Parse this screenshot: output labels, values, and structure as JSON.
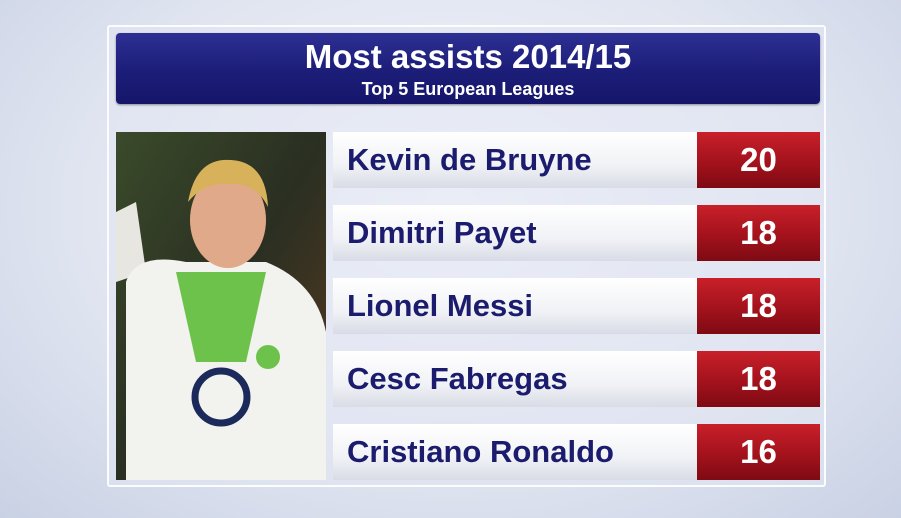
{
  "header": {
    "title": "Most assists 2014/15",
    "subtitle": "Top 5 European Leagues"
  },
  "table": {
    "rows": [
      {
        "name": "Kevin de Bruyne",
        "value": "20"
      },
      {
        "name": "Dimitri Payet",
        "value": "18"
      },
      {
        "name": "Lionel Messi",
        "value": "18"
      },
      {
        "name": "Cesc Fabregas",
        "value": "18"
      },
      {
        "name": "Cristiano Ronaldo",
        "value": "16"
      }
    ]
  }
}
